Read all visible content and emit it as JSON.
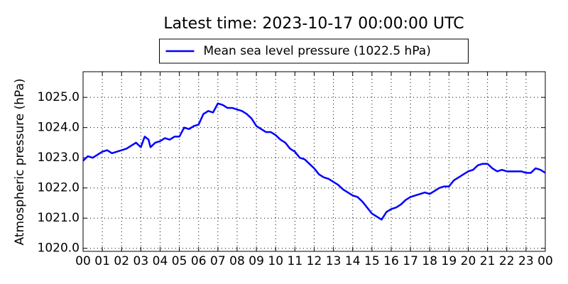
{
  "chart_data": {
    "type": "line",
    "title": "Latest time: 2023-10-17 00:00:00 UTC",
    "y_label": "Atmospheric pressure (hPa)",
    "legend": "upper center",
    "grid": true,
    "xlim": [
      0,
      24
    ],
    "ylim": [
      1019.9,
      1025.85
    ],
    "xticks": [
      {
        "value": 0,
        "label": "00"
      },
      {
        "value": 1,
        "label": "01"
      },
      {
        "value": 2,
        "label": "02"
      },
      {
        "value": 3,
        "label": "03"
      },
      {
        "value": 4,
        "label": "04"
      },
      {
        "value": 5,
        "label": "05"
      },
      {
        "value": 6,
        "label": "06"
      },
      {
        "value": 7,
        "label": "07"
      },
      {
        "value": 8,
        "label": "08"
      },
      {
        "value": 9,
        "label": "09"
      },
      {
        "value": 10,
        "label": "10"
      },
      {
        "value": 11,
        "label": "11"
      },
      {
        "value": 12,
        "label": "12"
      },
      {
        "value": 13,
        "label": "13"
      },
      {
        "value": 14,
        "label": "14"
      },
      {
        "value": 15,
        "label": "15"
      },
      {
        "value": 16,
        "label": "16"
      },
      {
        "value": 17,
        "label": "17"
      },
      {
        "value": 18,
        "label": "18"
      },
      {
        "value": 19,
        "label": "19"
      },
      {
        "value": 20,
        "label": "20"
      },
      {
        "value": 21,
        "label": "21"
      },
      {
        "value": 22,
        "label": "22"
      },
      {
        "value": 23,
        "label": "23"
      },
      {
        "value": 24,
        "label": "00"
      }
    ],
    "yticks": [
      {
        "value": 1020,
        "label": "1020.0"
      },
      {
        "value": 1021,
        "label": "1021.0"
      },
      {
        "value": 1022,
        "label": "1022.0"
      },
      {
        "value": 1023,
        "label": "1023.0"
      },
      {
        "value": 1024,
        "label": "1024.0"
      },
      {
        "value": 1025,
        "label": "1025.0"
      }
    ],
    "x": [
      0,
      0.25,
      0.5,
      0.75,
      1,
      1.25,
      1.5,
      1.75,
      2,
      2.25,
      2.5,
      2.75,
      3,
      3.2,
      3.4,
      3.5,
      3.75,
      4,
      4.25,
      4.5,
      4.75,
      5,
      5.25,
      5.5,
      5.75,
      6,
      6.25,
      6.5,
      6.75,
      7,
      7.25,
      7.5,
      7.75,
      8,
      8.25,
      8.5,
      8.75,
      9,
      9.25,
      9.5,
      9.75,
      10,
      10.25,
      10.5,
      10.75,
      11,
      11.25,
      11.5,
      11.75,
      12,
      12.25,
      12.5,
      12.75,
      13,
      13.25,
      13.5,
      13.75,
      14,
      14.25,
      14.5,
      14.75,
      15,
      15.25,
      15.5,
      15.75,
      16,
      16.25,
      16.5,
      16.75,
      17,
      17.25,
      17.5,
      17.75,
      18,
      18.25,
      18.5,
      18.75,
      19,
      19.25,
      19.5,
      19.75,
      20,
      20.25,
      20.5,
      20.75,
      21,
      21.25,
      21.5,
      21.75,
      22,
      22.25,
      22.5,
      22.75,
      23,
      23.25,
      23.5,
      23.75,
      24
    ],
    "series": [
      {
        "name": "Mean sea level pressure (1022.5 hPa)",
        "color": "#0000ff",
        "values": [
          1022.9,
          1023.05,
          1023.0,
          1023.1,
          1023.2,
          1023.25,
          1023.15,
          1023.2,
          1023.25,
          1023.3,
          1023.4,
          1023.5,
          1023.35,
          1023.7,
          1023.6,
          1023.35,
          1023.5,
          1023.55,
          1023.65,
          1023.6,
          1023.7,
          1023.7,
          1024.0,
          1023.95,
          1024.05,
          1024.1,
          1024.45,
          1024.55,
          1024.5,
          1024.8,
          1024.75,
          1024.65,
          1024.65,
          1024.6,
          1024.55,
          1024.45,
          1024.3,
          1024.05,
          1023.95,
          1023.85,
          1023.85,
          1023.75,
          1023.6,
          1023.5,
          1023.3,
          1023.2,
          1023.0,
          1022.95,
          1022.8,
          1022.65,
          1022.45,
          1022.35,
          1022.3,
          1022.2,
          1022.1,
          1021.95,
          1021.85,
          1021.75,
          1021.7,
          1021.55,
          1021.35,
          1021.15,
          1021.05,
          1020.95,
          1021.2,
          1021.3,
          1021.35,
          1021.45,
          1021.6,
          1021.7,
          1021.75,
          1021.8,
          1021.85,
          1021.8,
          1021.9,
          1022.0,
          1022.05,
          1022.05,
          1022.25,
          1022.35,
          1022.45,
          1022.55,
          1022.6,
          1022.75,
          1022.8,
          1022.8,
          1022.65,
          1022.55,
          1022.6,
          1022.55,
          1022.55,
          1022.55,
          1022.55,
          1022.5,
          1022.5,
          1022.65,
          1022.6,
          1022.5
        ]
      }
    ]
  }
}
